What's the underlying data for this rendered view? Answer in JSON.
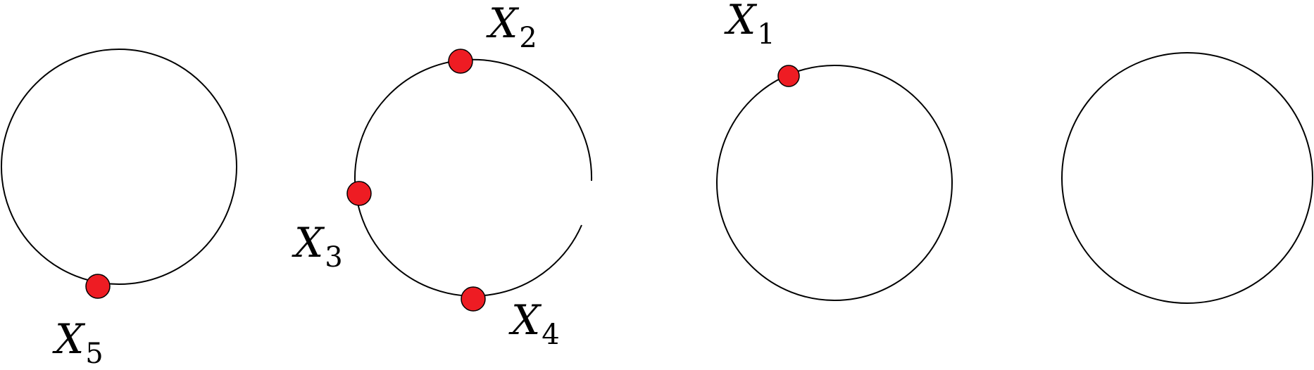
{
  "colors": {
    "point_fill": "#ee1c23",
    "stroke": "#000000"
  },
  "circles": [
    {
      "id": "circle-1",
      "points": [
        "X5"
      ]
    },
    {
      "id": "circle-2",
      "points": [
        "X2",
        "X3",
        "X4"
      ],
      "gap": true
    },
    {
      "id": "circle-3",
      "points": [
        "X1"
      ]
    },
    {
      "id": "circle-4",
      "points": []
    }
  ],
  "labels": {
    "x1": {
      "letter": "X",
      "sub": "1"
    },
    "x2": {
      "letter": "X",
      "sub": "2"
    },
    "x3": {
      "letter": "X",
      "sub": "3"
    },
    "x4": {
      "letter": "X",
      "sub": "4"
    },
    "x5": {
      "letter": "X",
      "sub": "5"
    }
  }
}
